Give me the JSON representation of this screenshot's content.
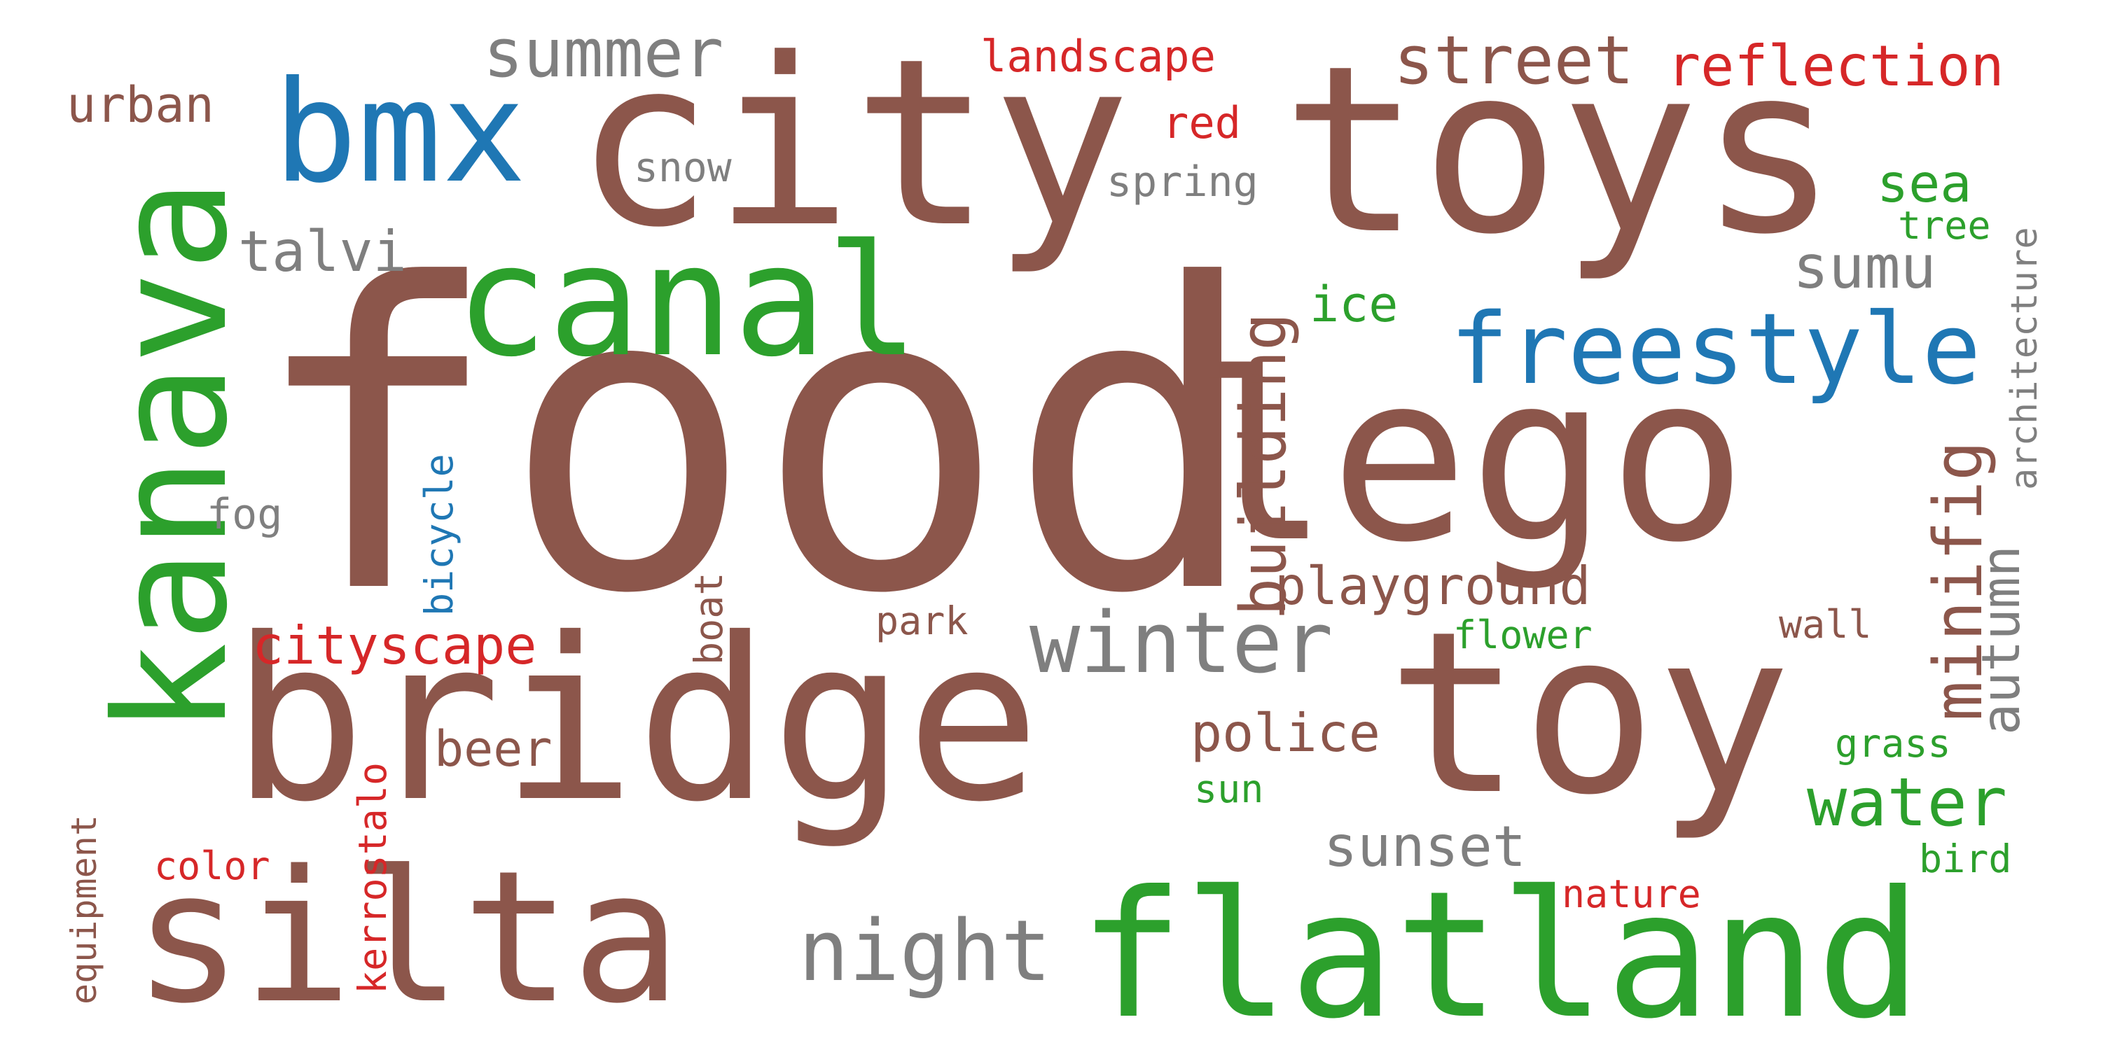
{
  "colors": {
    "brown": "#8c564b",
    "green": "#2ca02c",
    "blue": "#1f77b4",
    "gray": "#7f7f7f",
    "red": "#d62728",
    "background": "#ffffff"
  },
  "words": {
    "food": "food",
    "bridge": "bridge",
    "toy": "toy",
    "toys": "toys",
    "city": "city",
    "lego": "lego",
    "silta": "silta",
    "flatland": "flatland",
    "kanava": "kanava",
    "canal": "canal",
    "bmx": "bmx",
    "freestyle": "freestyle",
    "winter": "winter",
    "night": "night",
    "summer": "summer",
    "street": "street",
    "reflection": "reflection",
    "minifig": "minifig",
    "building": "building",
    "water": "water",
    "sunset": "sunset",
    "talvi": "talvi",
    "sumu": "sumu",
    "playground": "playground",
    "cityscape": "cityscape",
    "police": "police",
    "autumn": "autumn",
    "sea": "sea",
    "urban": "urban",
    "beer": "beer",
    "ice": "ice",
    "architecture": "architecture",
    "landscape": "landscape",
    "snow": "snow",
    "spring": "spring",
    "red": "red",
    "tree": "tree",
    "bicycle": "bicycle",
    "fog": "fog",
    "boat": "boat",
    "park": "park",
    "flower": "flower",
    "wall": "wall",
    "kerrostalo": "kerrostalo",
    "equipment": "equipment",
    "color": "color",
    "sun": "sun",
    "grass": "grass",
    "nature": "nature",
    "bird": "bird"
  }
}
